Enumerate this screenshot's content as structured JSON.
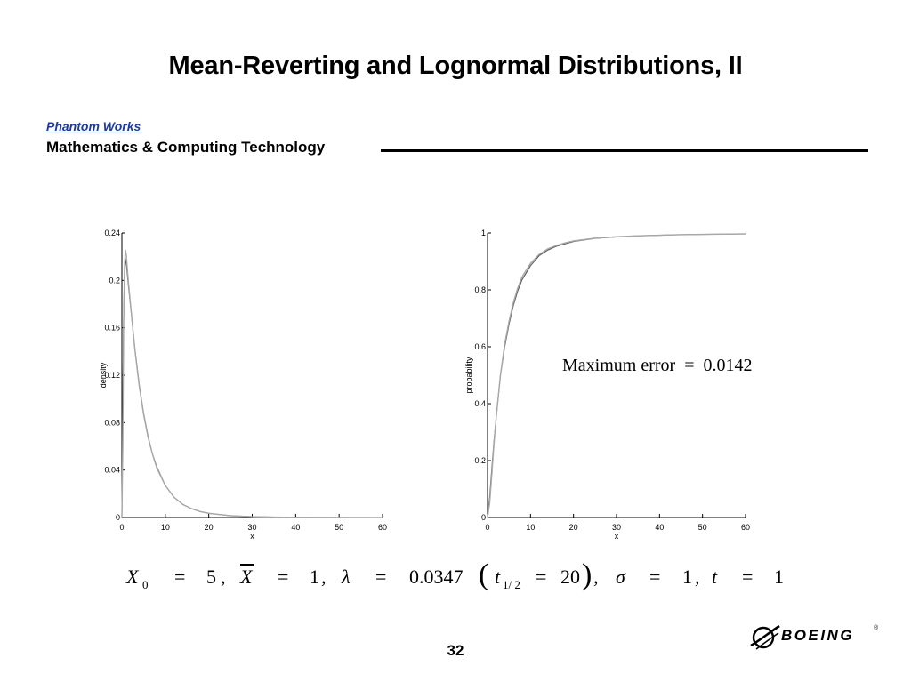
{
  "slide": {
    "title": "Mean-Reverting and Lognormal Distributions, II",
    "brand": "Phantom Works",
    "subtitle": "Mathematics & Computing Technology",
    "page_number": "32",
    "logo_text": "BOEING",
    "logo_mark": "®"
  },
  "annotation": "Maximum error  =  0.0142",
  "formula": {
    "x0_symbol": "X",
    "x0_sub": "0",
    "x0_value": "5",
    "xbar_symbol": "X",
    "xbar_value": "1",
    "lambda_symbol": "λ",
    "lambda_value": "0.0347",
    "t_half_symbol": "t",
    "t_half_sub": "1/ 2",
    "t_half_value": "20",
    "sigma_symbol": "σ",
    "sigma_value": "1",
    "t_symbol": "t",
    "t_value": "1",
    "eq": "=",
    "comma": ","
  },
  "chart_data": [
    {
      "type": "line",
      "xlabel": "x",
      "ylabel": "density",
      "xlim": [
        0,
        60
      ],
      "ylim": [
        0,
        0.24
      ],
      "xticks": [
        "0",
        "10",
        "20",
        "30",
        "40",
        "50",
        "60"
      ],
      "yticks": [
        "0",
        "0.04",
        "0.08",
        "0.12",
        "0.16",
        "0.2",
        "0.24"
      ],
      "series": [
        {
          "color": "#555555",
          "x": [
            0,
            0.2,
            0.4,
            0.6,
            0.8,
            1.0,
            1.2,
            1.5,
            2,
            2.5,
            3,
            4,
            5,
            6,
            7,
            8,
            10,
            12,
            14,
            16,
            18,
            20,
            25,
            30,
            35,
            40,
            50,
            60
          ],
          "y": [
            0.0,
            0.09,
            0.17,
            0.205,
            0.218,
            0.214,
            0.207,
            0.196,
            0.178,
            0.16,
            0.142,
            0.112,
            0.088,
            0.069,
            0.054,
            0.043,
            0.027,
            0.017,
            0.011,
            0.0075,
            0.005,
            0.0035,
            0.0015,
            0.0007,
            0.0003,
            0.00015,
            4e-05,
            1e-05
          ]
        },
        {
          "color": "#a8a8a8",
          "x": [
            0,
            0.2,
            0.4,
            0.6,
            0.8,
            1.0,
            1.2,
            1.5,
            2,
            2.5,
            3,
            4,
            5,
            6,
            7,
            8,
            10,
            12,
            14,
            16,
            18,
            20,
            25,
            30,
            35,
            40,
            50,
            60
          ],
          "y": [
            0.0,
            0.06,
            0.16,
            0.21,
            0.226,
            0.222,
            0.212,
            0.199,
            0.179,
            0.16,
            0.141,
            0.111,
            0.087,
            0.068,
            0.054,
            0.042,
            0.027,
            0.017,
            0.011,
            0.0075,
            0.005,
            0.0035,
            0.0015,
            0.0007,
            0.0003,
            0.00015,
            4e-05,
            1e-05
          ]
        }
      ]
    },
    {
      "type": "line",
      "xlabel": "x",
      "ylabel": "probability",
      "xlim": [
        0,
        60
      ],
      "ylim": [
        0,
        1
      ],
      "xticks": [
        "0",
        "10",
        "20",
        "30",
        "40",
        "50",
        "60"
      ],
      "yticks": [
        "0",
        "0.2",
        "0.4",
        "0.6",
        "0.8",
        "1"
      ],
      "series": [
        {
          "color": "#555555",
          "x": [
            0,
            0.5,
            1,
            1.5,
            2,
            3,
            4,
            5,
            6,
            7,
            8,
            10,
            12,
            14,
            16,
            18,
            20,
            25,
            30,
            35,
            40,
            45,
            50,
            55,
            60
          ],
          "y": [
            0.0,
            0.07,
            0.17,
            0.27,
            0.35,
            0.5,
            0.6,
            0.68,
            0.745,
            0.795,
            0.835,
            0.885,
            0.92,
            0.94,
            0.953,
            0.962,
            0.97,
            0.981,
            0.986,
            0.99,
            0.992,
            0.994,
            0.995,
            0.996,
            0.997
          ]
        },
        {
          "color": "#a8a8a8",
          "x": [
            0,
            0.5,
            1,
            1.5,
            2,
            3,
            4,
            5,
            6,
            7,
            8,
            10,
            12,
            14,
            16,
            18,
            20,
            25,
            30,
            35,
            40,
            45,
            50,
            55,
            60
          ],
          "y": [
            0.0,
            0.05,
            0.15,
            0.26,
            0.35,
            0.5,
            0.61,
            0.69,
            0.755,
            0.805,
            0.845,
            0.893,
            0.925,
            0.944,
            0.956,
            0.965,
            0.972,
            0.982,
            0.987,
            0.99,
            0.992,
            0.994,
            0.995,
            0.996,
            0.997
          ]
        }
      ]
    }
  ]
}
